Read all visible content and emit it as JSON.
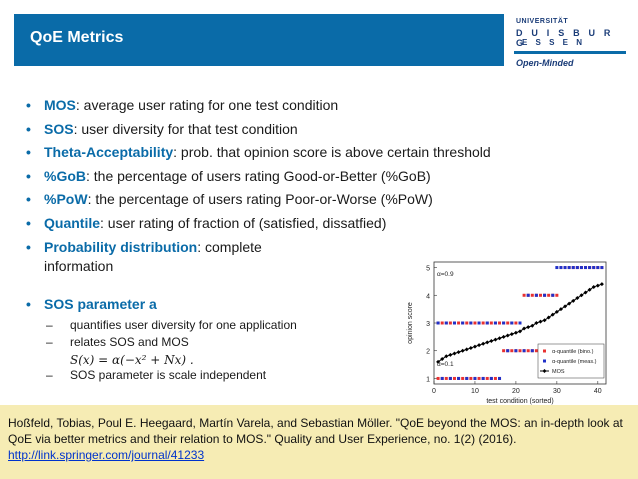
{
  "header": {
    "title": "QoE Metrics",
    "logo": {
      "line1": "UNIVERSITÄT",
      "line2": "D U I S B U R G",
      "line3": "E S S E N",
      "tagline": "Open-Minded"
    }
  },
  "bullets": [
    {
      "kw": "MOS",
      "rest": ": average user rating for one test condition"
    },
    {
      "kw": "SOS",
      "rest": ": user diversity for that test condition"
    },
    {
      "kw": "Theta-Acceptability",
      "rest": ": prob. that opinion score is above certain threshold"
    },
    {
      "kw": "%GoB",
      "rest": ": the percentage of users rating Good-or-Better (%GoB)"
    },
    {
      "kw": "%PoW",
      "rest": ": the percentage of users rating Poor-or-Worse (%PoW)"
    },
    {
      "kw": "Quantile",
      "rest": ": user rating of fraction of (satisfied, dissatfied)"
    },
    {
      "kw": "Probability distribution",
      "rest": ": complete",
      "rest2": "information"
    }
  ],
  "sos": {
    "kw": "SOS parameter a",
    "sub1": "quantifies user diversity for one application",
    "sub2": "relates SOS and MOS",
    "formula": "S(x) = α(−x² + Nx)  .",
    "sub3": "SOS parameter is scale independent"
  },
  "reference": {
    "text": "Hoßfeld, Tobias, Poul E. Heegaard, Martín Varela, and Sebastian Möller. \"QoE beyond the MOS: an in-depth look at QoE via better metrics and their relation to MOS.\" Quality and User Experience, no. 1(2) (2016).",
    "link": "http://link.springer.com/journal/41233"
  },
  "chart_data": {
    "type": "scatter",
    "xlabel": "test condition (sorted)",
    "ylabel": "opinion score",
    "xlim": [
      0,
      42
    ],
    "ylim": [
      0.8,
      5.2
    ],
    "xticks": [
      "0",
      "10",
      "20",
      "30",
      "40"
    ],
    "yticks": [
      "1",
      "2",
      "3",
      "4",
      "5"
    ],
    "annotations": [
      "α=0.9",
      "α=0.1"
    ],
    "legend": {
      "placement": "bottom-right",
      "entries": [
        "α-quantile (bino.)",
        "α-quantile (meas.)",
        "MOS"
      ]
    },
    "colors": {
      "bino": "#e83030",
      "meas": "#2030c8",
      "mos": "#000000"
    },
    "series": [
      {
        "name": "α-quantile (bino.)",
        "points": [
          [
            1,
            3
          ],
          [
            2,
            3
          ],
          [
            3,
            3
          ],
          [
            4,
            3
          ],
          [
            5,
            3
          ],
          [
            6,
            3
          ],
          [
            7,
            3
          ],
          [
            8,
            3
          ],
          [
            9,
            3
          ],
          [
            10,
            3
          ],
          [
            11,
            3
          ],
          [
            12,
            3
          ],
          [
            13,
            3
          ],
          [
            14,
            3
          ],
          [
            15,
            3
          ],
          [
            16,
            3
          ],
          [
            17,
            3
          ],
          [
            18,
            3
          ],
          [
            19,
            3
          ],
          [
            20,
            3
          ],
          [
            21,
            3
          ],
          [
            22,
            4
          ],
          [
            23,
            4
          ],
          [
            24,
            4
          ],
          [
            25,
            4
          ],
          [
            26,
            4
          ],
          [
            27,
            4
          ],
          [
            28,
            4
          ],
          [
            29,
            4
          ],
          [
            30,
            4
          ],
          [
            31,
            5
          ],
          [
            32,
            5
          ],
          [
            33,
            5
          ],
          [
            34,
            5
          ],
          [
            35,
            5
          ],
          [
            36,
            5
          ],
          [
            37,
            5
          ],
          [
            38,
            5
          ],
          [
            39,
            5
          ],
          [
            40,
            5
          ],
          [
            41,
            5
          ],
          [
            1,
            1
          ],
          [
            2,
            1
          ],
          [
            3,
            1
          ],
          [
            4,
            1
          ],
          [
            5,
            1
          ],
          [
            6,
            1
          ],
          [
            7,
            1
          ],
          [
            8,
            1
          ],
          [
            9,
            1
          ],
          [
            10,
            1
          ],
          [
            11,
            1
          ],
          [
            12,
            1
          ],
          [
            13,
            1
          ],
          [
            14,
            1
          ],
          [
            15,
            1
          ],
          [
            16,
            1
          ],
          [
            17,
            2
          ],
          [
            18,
            2
          ],
          [
            19,
            2
          ],
          [
            20,
            2
          ],
          [
            21,
            2
          ],
          [
            22,
            2
          ],
          [
            23,
            2
          ],
          [
            24,
            2
          ],
          [
            25,
            2
          ],
          [
            26,
            2
          ],
          [
            27,
            2
          ],
          [
            28,
            2
          ]
        ]
      },
      {
        "name": "α-quantile (meas.)",
        "points": [
          [
            1,
            3
          ],
          [
            3,
            3
          ],
          [
            5,
            3
          ],
          [
            7,
            3
          ],
          [
            9,
            3
          ],
          [
            11,
            3
          ],
          [
            13,
            3
          ],
          [
            15,
            3
          ],
          [
            17,
            3
          ],
          [
            19,
            3
          ],
          [
            21,
            3
          ],
          [
            23,
            4
          ],
          [
            25,
            4
          ],
          [
            27,
            4
          ],
          [
            29,
            4
          ],
          [
            30,
            5
          ],
          [
            31,
            5
          ],
          [
            32,
            5
          ],
          [
            33,
            5
          ],
          [
            34,
            5
          ],
          [
            35,
            5
          ],
          [
            36,
            5
          ],
          [
            37,
            5
          ],
          [
            38,
            5
          ],
          [
            39,
            5
          ],
          [
            40,
            5
          ],
          [
            41,
            5
          ],
          [
            2,
            1
          ],
          [
            4,
            1
          ],
          [
            6,
            1
          ],
          [
            8,
            1
          ],
          [
            10,
            1
          ],
          [
            12,
            1
          ],
          [
            14,
            1
          ],
          [
            16,
            1
          ],
          [
            18,
            2
          ],
          [
            20,
            2
          ],
          [
            22,
            2
          ],
          [
            24,
            2
          ],
          [
            26,
            2
          ],
          [
            28,
            2
          ],
          [
            29,
            2
          ],
          [
            30,
            2
          ],
          [
            31,
            2
          ],
          [
            32,
            2
          ],
          [
            33,
            2
          ],
          [
            34,
            2
          ],
          [
            35,
            2
          ],
          [
            36,
            2
          ],
          [
            37,
            2
          ],
          [
            38,
            2
          ],
          [
            39,
            2
          ],
          [
            40,
            2
          ],
          [
            41,
            2
          ]
        ]
      },
      {
        "name": "MOS",
        "points": [
          [
            1,
            1.6
          ],
          [
            2,
            1.7
          ],
          [
            3,
            1.8
          ],
          [
            4,
            1.85
          ],
          [
            5,
            1.9
          ],
          [
            6,
            1.95
          ],
          [
            7,
            2.0
          ],
          [
            8,
            2.05
          ],
          [
            9,
            2.1
          ],
          [
            10,
            2.15
          ],
          [
            11,
            2.2
          ],
          [
            12,
            2.25
          ],
          [
            13,
            2.3
          ],
          [
            14,
            2.35
          ],
          [
            15,
            2.4
          ],
          [
            16,
            2.45
          ],
          [
            17,
            2.5
          ],
          [
            18,
            2.55
          ],
          [
            19,
            2.6
          ],
          [
            20,
            2.65
          ],
          [
            21,
            2.7
          ],
          [
            22,
            2.8
          ],
          [
            23,
            2.85
          ],
          [
            24,
            2.9
          ],
          [
            25,
            3.0
          ],
          [
            26,
            3.05
          ],
          [
            27,
            3.1
          ],
          [
            28,
            3.2
          ],
          [
            29,
            3.3
          ],
          [
            30,
            3.4
          ],
          [
            31,
            3.5
          ],
          [
            32,
            3.6
          ],
          [
            33,
            3.7
          ],
          [
            34,
            3.8
          ],
          [
            35,
            3.9
          ],
          [
            36,
            4.0
          ],
          [
            37,
            4.1
          ],
          [
            38,
            4.2
          ],
          [
            39,
            4.3
          ],
          [
            40,
            4.35
          ],
          [
            41,
            4.4
          ]
        ]
      }
    ]
  }
}
